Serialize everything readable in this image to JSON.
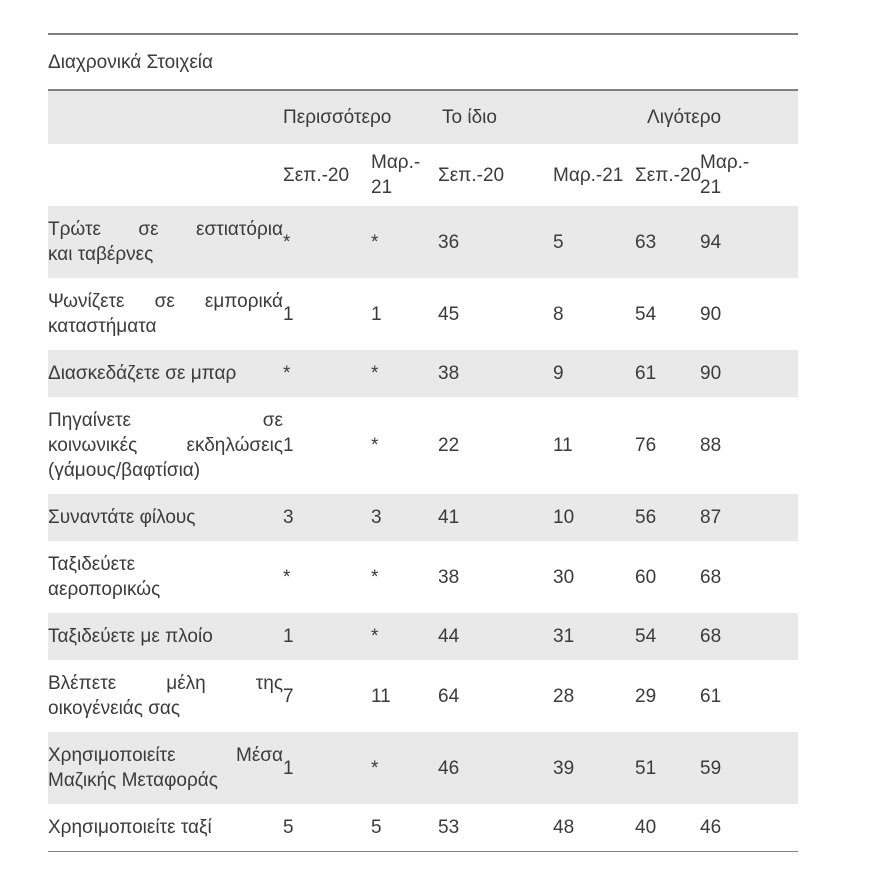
{
  "title": "Διαχρονικά Στοιχεία",
  "colors": {
    "stripe_gray": "#e9e9e9",
    "rule_gray": "#7f7f7f",
    "text": "#3b3b3b"
  },
  "table": {
    "groups": [
      {
        "label": "Περισσότερο"
      },
      {
        "label": "Το ίδιο"
      },
      {
        "label": "Λιγότερο"
      }
    ],
    "subheaders": [
      {
        "lines": [
          "Σεπ.-20"
        ]
      },
      {
        "lines": [
          "Μαρ.-",
          "21"
        ]
      },
      {
        "lines": [
          "Σεπ.-20"
        ]
      },
      {
        "lines": [
          "Μαρ.-21"
        ]
      },
      {
        "lines": [
          "Σεπ.-20"
        ]
      },
      {
        "lines": [
          "Μαρ.-",
          "21"
        ]
      }
    ],
    "rows": [
      {
        "label_lines": [
          "Τρώτε σε εστιατόρια",
          "και ταβέρνες"
        ],
        "values": [
          "*",
          "*",
          "36",
          "5",
          "63",
          "94"
        ]
      },
      {
        "label_lines": [
          "Ψωνίζετε σε εμπορικά",
          "καταστήματα"
        ],
        "values": [
          "1",
          "1",
          "45",
          "8",
          "54",
          "90"
        ]
      },
      {
        "label_lines": [
          "Διασκεδάζετε σε μπαρ"
        ],
        "values": [
          "*",
          "*",
          "38",
          "9",
          "61",
          "90"
        ]
      },
      {
        "label_lines": [
          "Πηγαίνετε σε",
          "κοινωνικές εκδηλώσεις",
          "(γάμους/βαφτίσια)"
        ],
        "values": [
          "1",
          "*",
          "22",
          "11",
          "76",
          "88"
        ]
      },
      {
        "label_lines": [
          "Συναντάτε φίλους"
        ],
        "values": [
          "3",
          "3",
          "41",
          "10",
          "56",
          "87"
        ]
      },
      {
        "label_lines": [
          "Ταξιδεύετε",
          "αεροπορικώς"
        ],
        "values": [
          "*",
          "*",
          "38",
          "30",
          "60",
          "68"
        ]
      },
      {
        "label_lines": [
          "Ταξιδεύετε με πλοίο"
        ],
        "values": [
          "1",
          "*",
          "44",
          "31",
          "54",
          "68"
        ]
      },
      {
        "label_lines": [
          "Βλέπετε μέλη της",
          "οικογένειάς σας"
        ],
        "values": [
          "7",
          "11",
          "64",
          "28",
          "29",
          "61"
        ]
      },
      {
        "label_lines": [
          "Χρησιμοποιείτε Μέσα",
          "Μαζικής Μεταφοράς"
        ],
        "values": [
          "1",
          "*",
          "46",
          "39",
          "51",
          "59"
        ]
      },
      {
        "label_lines": [
          "Χρησιμοποιείτε ταξί"
        ],
        "values": [
          "5",
          "5",
          "53",
          "48",
          "40",
          "46"
        ]
      }
    ]
  }
}
